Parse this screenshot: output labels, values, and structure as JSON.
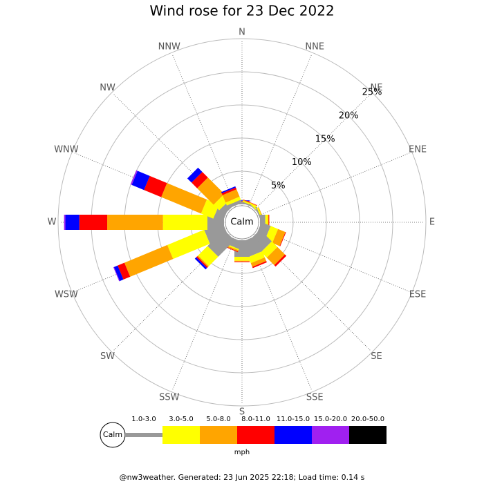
{
  "chart_data": {
    "type": "windrose",
    "title": "Wind rose for 23 Dec 2022",
    "directions": [
      "N",
      "NNE",
      "NE",
      "ENE",
      "E",
      "ESE",
      "SE",
      "SSE",
      "S",
      "SSW",
      "SW",
      "WSW",
      "W",
      "WNW",
      "NW",
      "NNW"
    ],
    "calm_label": "Calm",
    "rlim": [
      0,
      25
    ],
    "rticks": [
      {
        "value": 5,
        "label": "5%"
      },
      {
        "value": 10,
        "label": "10%"
      },
      {
        "value": 15,
        "label": "15%"
      },
      {
        "value": 20,
        "label": "20%"
      },
      {
        "value": 25,
        "label": "25%"
      }
    ],
    "legend_calm": "Calm",
    "legend_unit": "mph",
    "series": [
      {
        "name": "1.0-3.0",
        "color": "#999999",
        "values": [
          0.2,
          0.2,
          0.1,
          0.2,
          0.8,
          1.5,
          2.5,
          2.5,
          2.5,
          1.2,
          3.5,
          3.0,
          2.5,
          1.5,
          1.0,
          0.5
        ]
      },
      {
        "name": "3.0-5.0",
        "color": "#ffff00",
        "values": [
          0.1,
          0.2,
          0.2,
          0.2,
          0.4,
          1.2,
          1.2,
          1.0,
          0.6,
          0.2,
          2.0,
          6.0,
          6.7,
          2.0,
          1.2,
          0.5
        ]
      },
      {
        "name": "5.0-8.0",
        "color": "#ffa500",
        "values": [
          0.1,
          0.1,
          0,
          0.1,
          0.1,
          1.2,
          1.6,
          0.6,
          0.1,
          0.2,
          0.2,
          7.0,
          8.4,
          6.5,
          3.5,
          1.2
        ]
      },
      {
        "name": "8.0-11.0",
        "color": "#ff0000",
        "values": [
          0.1,
          0.05,
          0,
          0,
          0.1,
          0.1,
          0.3,
          0.2,
          0.1,
          0.1,
          0.2,
          1.1,
          4.2,
          2.8,
          1.2,
          0.3
        ]
      },
      {
        "name": "11.0-15.0",
        "color": "#0000ff",
        "values": [
          0.1,
          0,
          0,
          0,
          0,
          0,
          0,
          0,
          0,
          0,
          0.3,
          0.6,
          2.1,
          2.0,
          0.9,
          0.2
        ]
      },
      {
        "name": "15.0-20.0",
        "color": "#a020f0",
        "values": [
          0,
          0,
          0,
          0,
          0,
          0,
          0,
          0,
          0,
          0,
          0,
          0.1,
          0.2,
          0.2,
          0,
          0
        ]
      },
      {
        "name": "20.0-50.0",
        "color": "#000000",
        "values": [
          0,
          0,
          0,
          0,
          0,
          0,
          0,
          0,
          0,
          0,
          0,
          0,
          0,
          0,
          0,
          0
        ]
      }
    ],
    "footer": "@nw3weather. Generated: 23 Jun 2025 22:18; Load time: 0.14 s"
  }
}
